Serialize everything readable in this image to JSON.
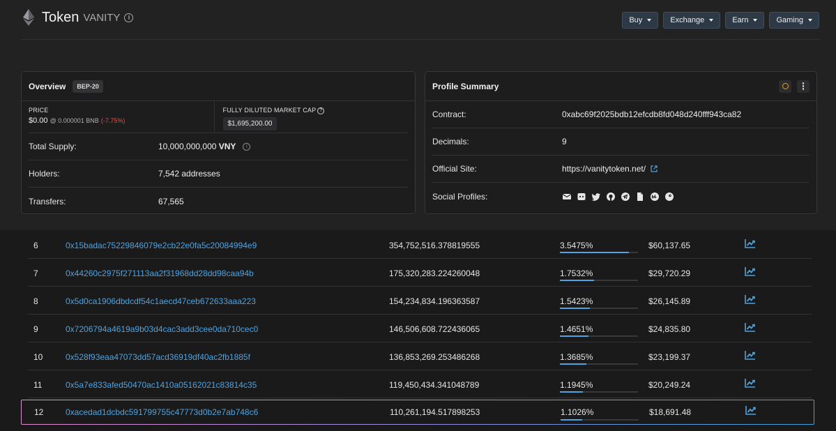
{
  "header": {
    "title": "Token",
    "subtitle": "VANITY",
    "nav": [
      {
        "label": "Buy"
      },
      {
        "label": "Exchange"
      },
      {
        "label": "Earn"
      },
      {
        "label": "Gaming"
      }
    ]
  },
  "overview": {
    "title": "Overview",
    "badge": "BEP-20",
    "price_label": "PRICE",
    "price_value": "$0.00",
    "price_bnb": "@ 0.000001 BNB",
    "price_change": "(-7.75%)",
    "market_cap_label": "FULLY DILUTED MARKET CAP",
    "market_cap_value": "$1,695,200.00",
    "total_supply_label": "Total Supply:",
    "total_supply_value": "10,000,000,000",
    "total_supply_unit": "VNY",
    "holders_label": "Holders:",
    "holders_value": "7,542 addresses",
    "transfers_label": "Transfers:",
    "transfers_value": "67,565"
  },
  "profile": {
    "title": "Profile Summary",
    "contract_label": "Contract:",
    "contract_value": "0xabc69f2025bdb12efcdb8fd048d240fff943ca82",
    "decimals_label": "Decimals:",
    "decimals_value": "9",
    "site_label": "Official Site:",
    "site_value": "https://vanitytoken.net/",
    "social_label": "Social Profiles:",
    "socials": [
      "email-icon",
      "discord-icon",
      "twitter-icon",
      "github-icon",
      "telegram-icon",
      "document-icon",
      "coinmarketcap-icon",
      "coingecko-icon"
    ]
  },
  "holders": {
    "rows": [
      {
        "rank": "6",
        "address": "0x15badac75229846079e2cb22e0fa5c20084994e9",
        "quantity": "354,752,516.378819555",
        "percentage": "3.5475%",
        "share": 3.5475,
        "value": "$60,137.65"
      },
      {
        "rank": "7",
        "address": "0x44260c2975f271113aa2f31968dd28dd98caa94b",
        "quantity": "175,320,283.224260048",
        "percentage": "1.7532%",
        "share": 1.7532,
        "value": "$29,720.29"
      },
      {
        "rank": "8",
        "address": "0x5d0ca1906dbdcdf54c1aecd47ceb672633aaa223",
        "quantity": "154,234,834.196363587",
        "percentage": "1.5423%",
        "share": 1.5423,
        "value": "$26,145.89"
      },
      {
        "rank": "9",
        "address": "0x7206794a4619a9b03d4cac3add3cee0da710cec0",
        "quantity": "146,506,608.722436065",
        "percentage": "1.4651%",
        "share": 1.4651,
        "value": "$24,835.80"
      },
      {
        "rank": "10",
        "address": "0x528f93eaa47073dd57acd36919df40ac2fb1885f",
        "quantity": "136,853,269.253486268",
        "percentage": "1.3685%",
        "share": 1.3685,
        "value": "$23,199.37"
      },
      {
        "rank": "11",
        "address": "0x5a7e833afed50470ac1410a05162021c83814c35",
        "quantity": "119,450,434.341048789",
        "percentage": "1.1945%",
        "share": 1.1945,
        "value": "$20,249.24"
      },
      {
        "rank": "12",
        "address": "0xacedad1dcbdc591799755c47773d0b2e7ab748c6",
        "quantity": "110,261,194.517898253",
        "percentage": "1.1026%",
        "share": 1.1026,
        "value": "$18,691.48",
        "highlighted": true
      }
    ]
  },
  "colors": {
    "accent": "#4fa3e0",
    "negative": "#e05050",
    "background": "#1a1a1b"
  }
}
